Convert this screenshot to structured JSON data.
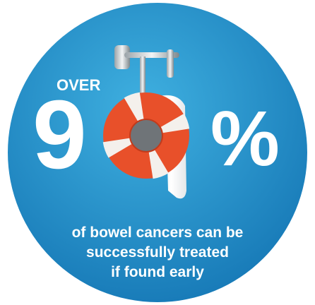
{
  "badge": {
    "prefix": "OVER",
    "digit": "9",
    "symbol": "%",
    "caption": [
      "of bowel cancers can be",
      "successfully treated",
      "if found early"
    ]
  }
}
